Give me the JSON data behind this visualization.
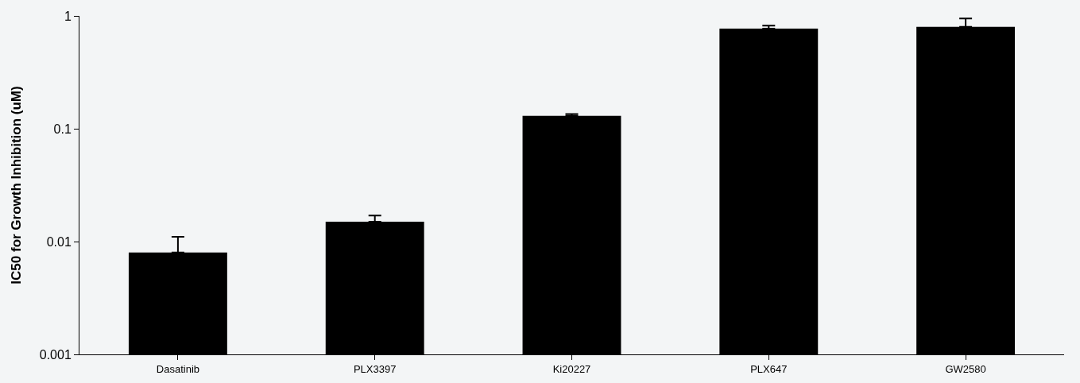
{
  "chart_data": {
    "type": "bar",
    "ylabel": "IC50 for Growth Inhibition (uM)",
    "categories": [
      "Dasatinib",
      "PLX3397",
      "Ki20227",
      "PLX647",
      "GW2580"
    ],
    "values": [
      0.008,
      0.015,
      0.13,
      0.77,
      0.8
    ],
    "errors": [
      [
        0.008,
        0.011
      ],
      [
        0.015,
        0.017
      ],
      [
        0.13,
        0.135
      ],
      [
        0.77,
        0.82
      ],
      [
        0.8,
        0.95
      ]
    ],
    "color": "#000000",
    "log": "y",
    "ylim": [
      0.001,
      1
    ],
    "yticks": [
      0.001,
      0.01,
      0.1,
      1
    ],
    "grid": false
  }
}
